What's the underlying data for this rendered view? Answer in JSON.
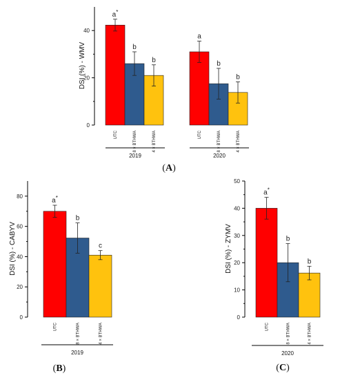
{
  "chart_data": [
    {
      "panel": "A",
      "type": "bar",
      "ylabel": "DSI (%) - WMV",
      "ylim": [
        0,
        50
      ],
      "yticks": [
        0,
        20,
        40
      ],
      "categories": [
        "UTC",
        "8 × BTHWA",
        "4 × BTHWA"
      ],
      "groups": [
        {
          "name": "2019",
          "values": [
            42.3,
            26.0,
            21.0
          ],
          "errors": [
            2.5,
            5.0,
            4.5
          ],
          "letters": [
            "a",
            "b",
            "b"
          ],
          "star": [
            true,
            false,
            false
          ]
        },
        {
          "name": "2020",
          "values": [
            31.0,
            17.5,
            13.8
          ],
          "errors": [
            4.5,
            6.5,
            4.5
          ],
          "letters": [
            "a",
            "b",
            "b"
          ],
          "star": [
            false,
            false,
            false
          ]
        }
      ],
      "colors": [
        "#ff0000",
        "#2f5b8e",
        "#ffc20e"
      ],
      "caption": "A"
    },
    {
      "panel": "B",
      "type": "bar",
      "ylabel": "DSI (%) - CABYV",
      "ylim": [
        0,
        90
      ],
      "yticks": [
        0,
        20,
        40,
        60,
        80
      ],
      "categories": [
        "UTC",
        "8 × BTHWA",
        "4 × BTHWA"
      ],
      "groups": [
        {
          "name": "2019",
          "values": [
            70.0,
            52.3,
            41.0
          ],
          "errors": [
            4.0,
            10.0,
            3.0
          ],
          "letters": [
            "a",
            "b",
            "c"
          ],
          "star": [
            true,
            false,
            false
          ]
        }
      ],
      "colors": [
        "#ff0000",
        "#2f5b8e",
        "#ffc20e"
      ],
      "caption": "B"
    },
    {
      "panel": "C",
      "type": "bar",
      "ylabel": "DSI (%) - ZYMV",
      "ylim": [
        0,
        50
      ],
      "yticks": [
        0,
        10,
        20,
        30,
        40,
        50
      ],
      "categories": [
        "UTC",
        "8 × BTHWA",
        "4 × BTHWA"
      ],
      "groups": [
        {
          "name": "2020",
          "values": [
            40.0,
            20.0,
            16.2
          ],
          "errors": [
            4.0,
            7.0,
            2.5
          ],
          "letters": [
            "a",
            "b",
            "b"
          ],
          "star": [
            true,
            false,
            false
          ]
        }
      ],
      "colors": [
        "#ff0000",
        "#2f5b8e",
        "#ffc20e"
      ],
      "caption": "C"
    }
  ]
}
